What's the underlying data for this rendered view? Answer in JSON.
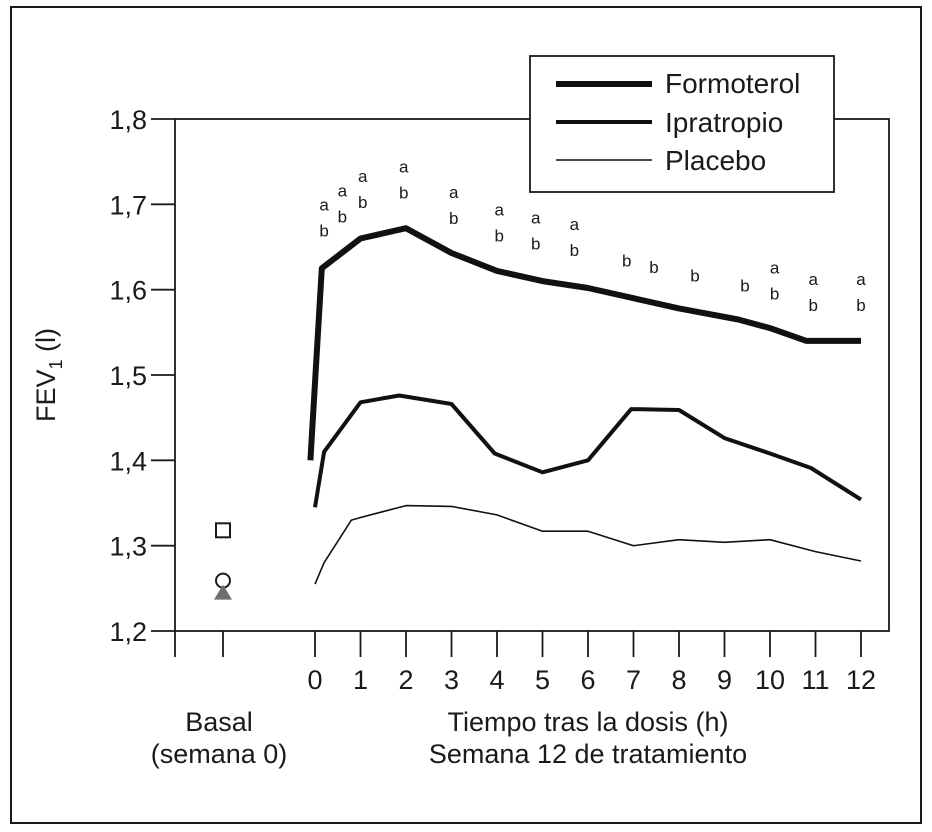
{
  "chart_data": {
    "type": "line",
    "ylabel": "FEV",
    "ylabel_sub": "1",
    "ylabel_unit": " (l)",
    "ylim": [
      1.2,
      1.8
    ],
    "y_ticks": [
      1.2,
      1.3,
      1.4,
      1.5,
      1.6,
      1.7,
      1.8
    ],
    "y_tick_labels": [
      "1,2",
      "1,3",
      "1,4",
      "1,5",
      "1,6",
      "1,7",
      "1,8"
    ],
    "x_ticks": [
      0,
      1,
      2,
      3,
      4,
      5,
      6,
      7,
      8,
      9,
      10,
      11,
      12
    ],
    "xlim": [
      0,
      12
    ],
    "xlabel": [
      "Tiempo tras la dosis (h)",
      "Semana 12 de tratamiento"
    ],
    "basal_label": [
      "Basal",
      "(semana 0)"
    ],
    "legend_position": "top-right",
    "grid": false,
    "series": [
      {
        "name": "Formoterol",
        "stroke": "#111111",
        "width": 6,
        "x": [
          -0.1,
          0.15,
          1,
          2,
          3,
          4,
          5,
          6,
          7,
          8,
          9.3,
          10,
          10.8,
          12
        ],
        "y": [
          1.4,
          1.625,
          1.66,
          1.672,
          1.643,
          1.622,
          1.61,
          1.602,
          1.59,
          1.578,
          1.565,
          1.555,
          1.54,
          1.54
        ],
        "basal": {
          "marker": "square",
          "y": 1.318
        }
      },
      {
        "name": "Ipratropio",
        "stroke": "#111111",
        "width": 4,
        "x": [
          0,
          0.2,
          1,
          1.85,
          3,
          3.95,
          5,
          6,
          6.95,
          8,
          9,
          10,
          10.9,
          12
        ],
        "y": [
          1.345,
          1.41,
          1.468,
          1.476,
          1.466,
          1.408,
          1.386,
          1.4,
          1.46,
          1.459,
          1.426,
          1.408,
          1.391,
          1.354
        ],
        "basal": {
          "marker": "circle",
          "y": 1.259
        }
      },
      {
        "name": "Placebo",
        "stroke": "#111111",
        "width": 1.6,
        "x": [
          0,
          0.2,
          0.8,
          1,
          2,
          3,
          4,
          5,
          6,
          7,
          8,
          9,
          10,
          11,
          12
        ],
        "y": [
          1.255,
          1.28,
          1.33,
          1.333,
          1.347,
          1.346,
          1.336,
          1.317,
          1.317,
          1.3,
          1.307,
          1.304,
          1.307,
          1.293,
          1.282
        ],
        "basal": {
          "marker": "triangle",
          "y": 1.245,
          "color": "#6e6e6e"
        }
      }
    ],
    "annotations": [
      {
        "x": 0.2,
        "labels": [
          "a",
          "b"
        ]
      },
      {
        "x": 0.6,
        "labels": [
          "a",
          "b"
        ]
      },
      {
        "x": 1.05,
        "labels": [
          "a",
          "b"
        ]
      },
      {
        "x": 1.95,
        "labels": [
          "a",
          "b"
        ]
      },
      {
        "x": 3.05,
        "labels": [
          "a",
          "b"
        ]
      },
      {
        "x": 4.05,
        "labels": [
          "a",
          "b"
        ]
      },
      {
        "x": 4.85,
        "labels": [
          "a",
          "b"
        ]
      },
      {
        "x": 5.7,
        "labels": [
          "a",
          "b"
        ]
      },
      {
        "x": 6.85,
        "labels": [
          "b"
        ]
      },
      {
        "x": 7.45,
        "labels": [
          "b"
        ]
      },
      {
        "x": 8.35,
        "labels": [
          "b"
        ]
      },
      {
        "x": 9.45,
        "labels": [
          "b"
        ]
      },
      {
        "x": 10.1,
        "labels": [
          "a",
          "b"
        ]
      },
      {
        "x": 10.95,
        "labels": [
          "a",
          "b"
        ]
      },
      {
        "x": 12,
        "labels": [
          "a",
          "b"
        ]
      }
    ]
  }
}
